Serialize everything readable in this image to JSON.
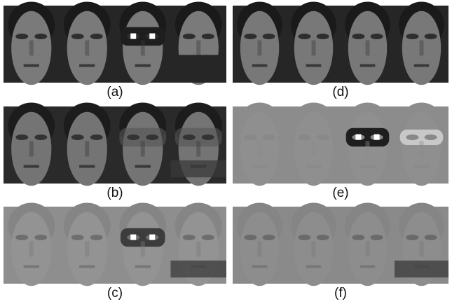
{
  "panels": [
    {
      "label": "(a)"
    },
    {
      "label": "(d)"
    },
    {
      "label": "(b)"
    },
    {
      "label": "(e)"
    },
    {
      "label": "(c)"
    },
    {
      "label": "(f)"
    }
  ]
}
